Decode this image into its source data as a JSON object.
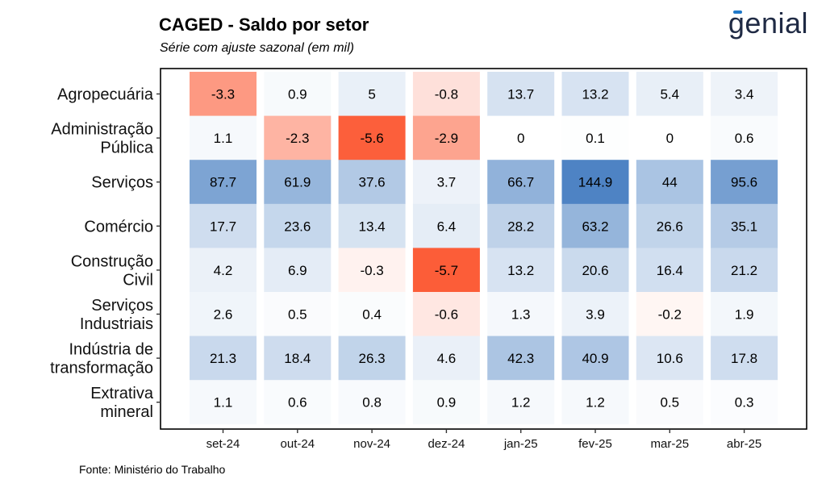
{
  "header": {
    "title": "CAGED - Saldo por setor",
    "subtitle": "Série com ajuste sazonal (em mil)",
    "logo_text": "genial"
  },
  "footer": {
    "source": "Fonte: Ministério do Trabalho"
  },
  "colors": {
    "negative": "#fc4f27",
    "positive": "#3a75bd",
    "neutral": "#ffffff",
    "frame": "#000000"
  },
  "chart_data": {
    "type": "heatmap",
    "title": "CAGED - Saldo por setor",
    "subtitle": "Série com ajuste sazonal (em mil)",
    "xlabel": "",
    "ylabel": "",
    "legend": "none",
    "grid": false,
    "x": [
      "set-24",
      "out-24",
      "nov-24",
      "dez-24",
      "jan-25",
      "fev-25",
      "mar-25",
      "abr-25"
    ],
    "y": [
      [
        "Agropecuária"
      ],
      [
        "Administração",
        "Pública"
      ],
      [
        "Serviços"
      ],
      [
        "Comércio"
      ],
      [
        "Construção",
        "Civil"
      ],
      [
        "Serviços",
        "Industriais"
      ],
      [
        "Indústria de",
        "transformação"
      ],
      [
        "Extrativa",
        "mineral"
      ]
    ],
    "values": [
      [
        -3.3,
        0.9,
        5,
        -0.8,
        13.7,
        13.2,
        5.4,
        3.4
      ],
      [
        1.1,
        -2.3,
        -5.6,
        -2.9,
        0,
        0.1,
        0,
        0.6
      ],
      [
        87.7,
        61.9,
        37.6,
        3.7,
        66.7,
        144.9,
        44,
        95.6
      ],
      [
        17.7,
        23.6,
        13.4,
        6.4,
        28.2,
        63.2,
        26.6,
        35.1
      ],
      [
        4.2,
        6.9,
        -0.3,
        -5.7,
        13.2,
        20.6,
        16.4,
        21.2
      ],
      [
        2.6,
        0.5,
        0.4,
        -0.6,
        1.3,
        3.9,
        -0.2,
        1.9
      ],
      [
        21.3,
        18.4,
        26.3,
        4.6,
        42.3,
        40.9,
        10.6,
        17.8
      ],
      [
        1.1,
        0.6,
        0.8,
        0.9,
        1.2,
        1.2,
        0.5,
        0.3
      ]
    ]
  }
}
